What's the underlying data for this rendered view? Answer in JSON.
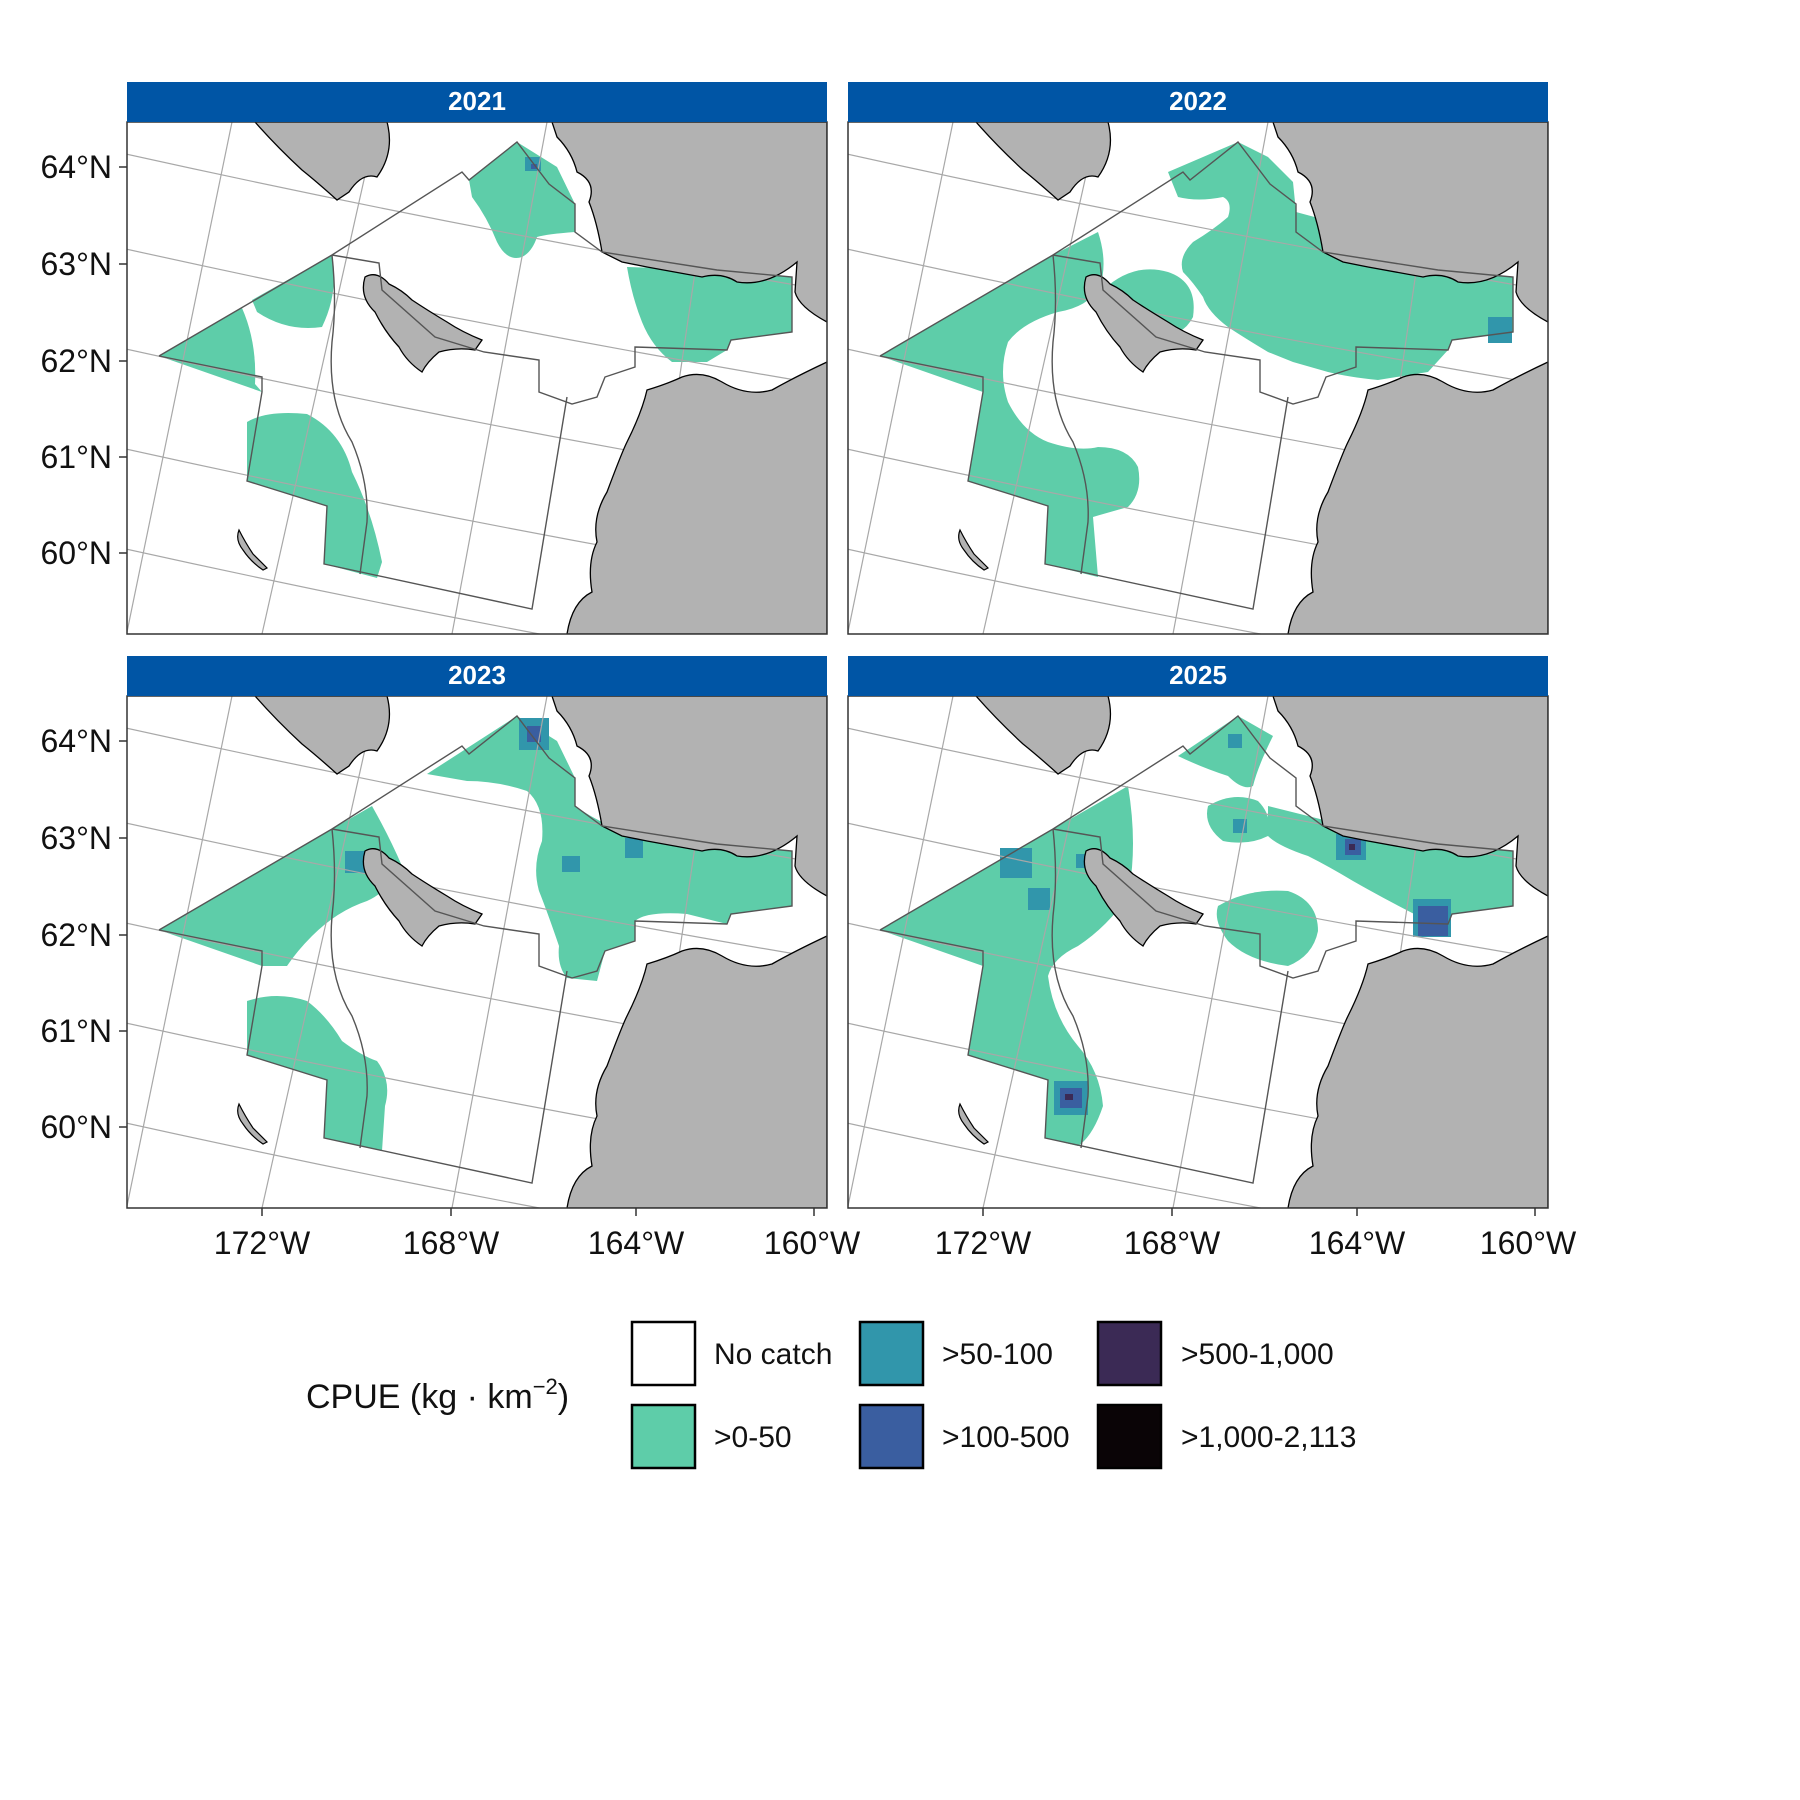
{
  "panels": [
    {
      "year": "2021"
    },
    {
      "year": "2022"
    },
    {
      "year": "2023"
    },
    {
      "year": "2025"
    }
  ],
  "axes": {
    "y_labels": [
      "64°N",
      "63°N",
      "62°N",
      "61°N",
      "60°N"
    ],
    "x_labels": [
      "172°W",
      "168°W",
      "164°W",
      "160°W"
    ]
  },
  "legend": {
    "title_main": "CPUE (kg · km",
    "title_sup": "−2",
    "title_end": ")",
    "items": [
      {
        "label": "No catch",
        "color": "#ffffff"
      },
      {
        "label": ">0-50",
        "color": "#5ecda9"
      },
      {
        "label": ">50-100",
        "color": "#3196ab"
      },
      {
        "label": ">100-500",
        "color": "#3a5ea0"
      },
      {
        "label": ">500-1,000",
        "color": "#3b2a55"
      },
      {
        "label": ">1,000-2,113",
        "color": "#0a0406"
      }
    ]
  },
  "colors": {
    "strip": "#0055a5",
    "land": "#b2b2b2",
    "low_catch": "#5ecda9",
    "mid_catch": "#3196ab",
    "high_catch": "#3a5ea0",
    "very_high_catch": "#3b2a55"
  },
  "chart_data": {
    "type": "map",
    "facets": [
      "2021",
      "2022",
      "2023",
      "2025"
    ],
    "legend_title": "CPUE (kg · km−2)",
    "categories": [
      "No catch",
      ">0-50",
      ">50-100",
      ">100-500",
      ">500-1,000",
      ">1,000-2,113"
    ],
    "lat_ticks": [
      "64°N",
      "63°N",
      "62°N",
      "61°N",
      "60°N"
    ],
    "lon_ticks": [
      "172°W",
      "168°W",
      "164°W",
      "160°W"
    ]
  }
}
